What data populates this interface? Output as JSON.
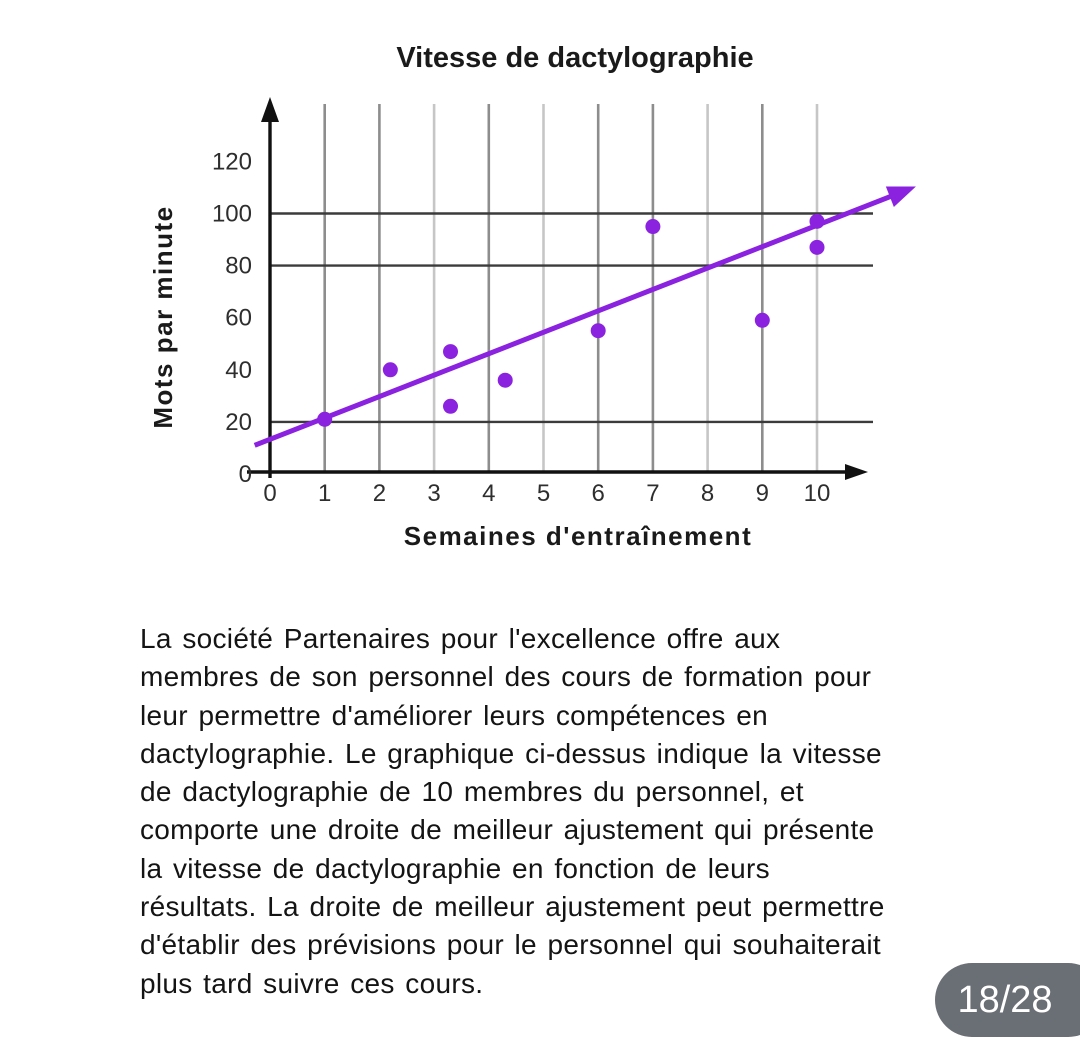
{
  "chart_data": {
    "type": "scatter",
    "title": "Vitesse de dactylographie",
    "xlabel": "Semaines d'entraînement",
    "ylabel": "Mots par minute",
    "x_ticks": [
      0,
      1,
      2,
      3,
      4,
      5,
      6,
      7,
      8,
      9,
      10
    ],
    "y_ticks": [
      0,
      20,
      40,
      60,
      80,
      100,
      120
    ],
    "xlim": [
      0,
      11.5
    ],
    "ylim": [
      0,
      140
    ],
    "h_gridlines": [
      20,
      80,
      100
    ],
    "v_gridlines_dark": [
      1,
      2,
      4,
      6,
      7,
      9
    ],
    "v_gridlines_light": [
      3,
      5,
      8,
      10
    ],
    "points": [
      [
        1,
        21
      ],
      [
        2.2,
        40
      ],
      [
        3.3,
        47
      ],
      [
        3.3,
        26
      ],
      [
        4.3,
        36
      ],
      [
        6,
        55
      ],
      [
        7,
        95
      ],
      [
        9,
        59
      ],
      [
        10,
        97
      ],
      [
        10,
        87
      ]
    ],
    "trend_line": {
      "x1": -0.28,
      "y1": 11,
      "x2": 11.4,
      "y2": 107
    },
    "colors": {
      "points": "#8a22e0",
      "trend": "#8a22e0",
      "grid_dark": "#3b3b3b",
      "grid_mid": "#8d8d8d",
      "grid_light": "#c6c6c6",
      "axis": "#111111"
    },
    "legend": "none",
    "grid": "on"
  },
  "paragraph": {
    "lines": [
      "La société Partenaires pour l'excellence offre aux",
      "membres de son personnel des cours de formation pour",
      "leur permettre d'améliorer leurs compétences en",
      "dactylographie. Le graphique ci-dessus indique la vitesse",
      "de dactylographie de 10 membres du personnel, et",
      "comporte une droite de meilleur ajustement qui présente",
      "la vitesse de dactylographie en fonction de leurs",
      "résultats. La droite de meilleur ajustement peut permettre",
      "d'établir des prévisions pour le personnel qui souhaiterait",
      "plus tard suivre ces cours."
    ]
  },
  "badge": {
    "label": "18/28",
    "color": "#6a6e75"
  }
}
